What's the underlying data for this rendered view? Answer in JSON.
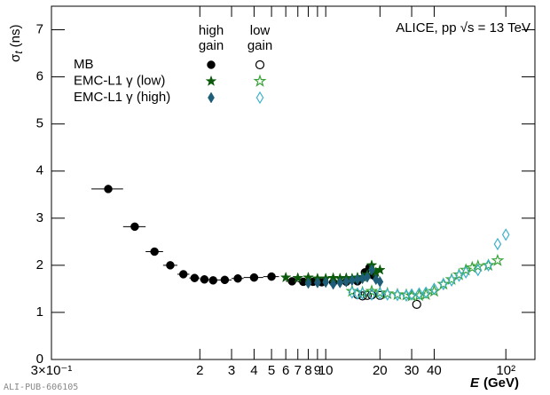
{
  "chart_data": {
    "type": "scatter",
    "annotation": "ALICE, pp √s = 13 TeV",
    "watermark": "ALI-PUB-606105",
    "ylabel": "σ",
    "ylabel_sub": "t",
    "ylabel_unit": "(ns)",
    "xlabel": "E",
    "xlabel_unit": "(GeV)",
    "log_x": true,
    "xlim": [
      0.3,
      145
    ],
    "ylim": [
      0,
      7.5
    ],
    "xticks": [
      {
        "value": 0.3,
        "label": "3×10⁻¹"
      },
      2,
      3,
      4,
      5,
      6,
      7,
      8,
      9,
      10,
      20,
      30,
      40,
      {
        "value": 100,
        "label": "10²"
      }
    ],
    "yticks": [
      0,
      1,
      2,
      3,
      4,
      5,
      6,
      7
    ],
    "legend_header": [
      [
        "high",
        "gain"
      ],
      [
        "low",
        "gain"
      ]
    ],
    "series": [
      {
        "name": "MB",
        "high_gain": {
          "marker": "circle",
          "color": "#000000",
          "x": [
            0.62,
            0.87,
            1.12,
            1.37,
            1.62,
            1.87,
            2.12,
            2.37,
            2.75,
            3.25,
            4,
            5,
            6.5,
            7.5,
            8.5,
            9.5,
            11,
            13,
            15,
            16.5,
            17.5,
            18.5
          ],
          "xlow": [
            0.5,
            0.75,
            1,
            1.25,
            1.5,
            1.75,
            2,
            2.25,
            2.5,
            3,
            3.5,
            4.5,
            6,
            7,
            8,
            9,
            10,
            12,
            14,
            16,
            17,
            18
          ],
          "xhigh": [
            0.75,
            1,
            1.25,
            1.5,
            1.75,
            2,
            2.25,
            2.5,
            3,
            3.5,
            4.5,
            5.5,
            7,
            8,
            9,
            10,
            12,
            14,
            16,
            17,
            18,
            19
          ],
          "values": [
            3.62,
            2.82,
            2.29,
            2.0,
            1.81,
            1.73,
            1.7,
            1.68,
            1.69,
            1.72,
            1.74,
            1.76,
            1.66,
            1.65,
            1.65,
            1.64,
            1.64,
            1.65,
            1.66,
            1.85,
            1.95,
            1.78
          ]
        },
        "low_gain": {
          "marker": "circle",
          "color": "#000000",
          "x": [
            15,
            16,
            17,
            18,
            20,
            32
          ],
          "values": [
            1.38,
            1.35,
            1.36,
            1.37,
            1.36,
            1.17
          ]
        }
      },
      {
        "name": "EMC-L1 γ (low)",
        "high_gain": {
          "marker": "star",
          "color": "#0b5a0b",
          "x": [
            6,
            7,
            8,
            9,
            10,
            11,
            12,
            13,
            14,
            15,
            16,
            17,
            18,
            19,
            20
          ],
          "values": [
            1.74,
            1.73,
            1.74,
            1.72,
            1.72,
            1.73,
            1.72,
            1.73,
            1.72,
            1.74,
            1.75,
            1.8,
            2.0,
            1.85,
            1.9
          ]
        },
        "low_gain": {
          "marker": "star",
          "color": "#3aa33a",
          "x": [
            14,
            16,
            18,
            20,
            22,
            25,
            28,
            30,
            33,
            36,
            40,
            45,
            50,
            55,
            60,
            65,
            70,
            80,
            90
          ],
          "values": [
            1.45,
            1.42,
            1.45,
            1.42,
            1.4,
            1.38,
            1.37,
            1.35,
            1.36,
            1.38,
            1.45,
            1.6,
            1.7,
            1.8,
            1.9,
            1.95,
            1.98,
            2.0,
            2.1
          ]
        }
      },
      {
        "name": "EMC-L1 γ (high)",
        "high_gain": {
          "marker": "diamond",
          "color": "#1f5e78",
          "x": [
            8,
            9,
            10,
            11,
            12,
            13,
            14,
            15,
            16,
            17,
            18,
            19,
            20
          ],
          "values": [
            1.62,
            1.63,
            1.64,
            1.6,
            1.63,
            1.65,
            1.68,
            1.7,
            1.72,
            1.75,
            1.9,
            1.7,
            1.65
          ]
        },
        "low_gain": {
          "marker": "diamond",
          "color": "#3bb0c9",
          "x": [
            14,
            15,
            16,
            18,
            20,
            22,
            25,
            28,
            30,
            33,
            36,
            40,
            45,
            50,
            55,
            60,
            70,
            80,
            90,
            100
          ],
          "values": [
            1.42,
            1.4,
            1.4,
            1.38,
            1.4,
            1.38,
            1.37,
            1.36,
            1.38,
            1.4,
            1.42,
            1.5,
            1.6,
            1.68,
            1.78,
            1.85,
            1.9,
            2.0,
            2.45,
            2.65
          ]
        }
      }
    ]
  }
}
